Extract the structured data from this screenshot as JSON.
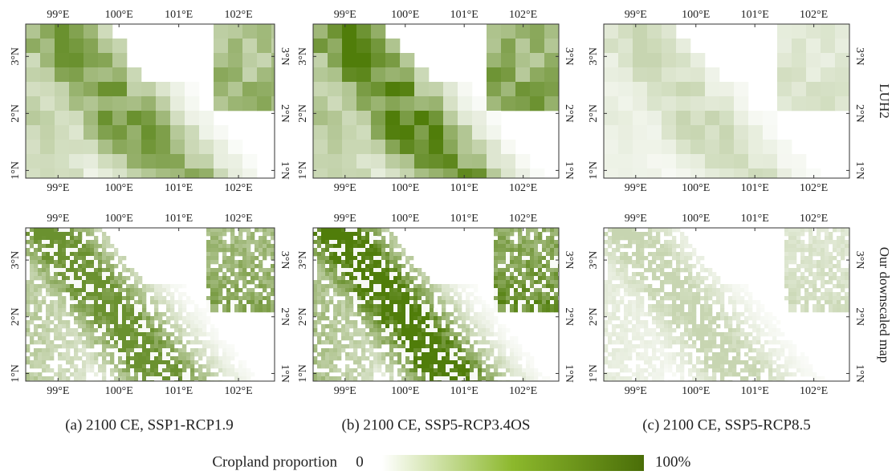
{
  "lon_ticks": [
    "99°E",
    "100°E",
    "101°E",
    "102°E"
  ],
  "lat_ticks": [
    "3°N",
    "2°N",
    "1°N"
  ],
  "row_labels": [
    "LUH2",
    "Our downscaled map"
  ],
  "captions": [
    "(a) 2100 CE, SSP1-RCP1.9",
    "(b) 2100 CE, SSP5-RCP3.4OS",
    "(c) 2100 CE, SSP5-RCP8.5"
  ],
  "colorbar": {
    "label": "Cropland proportion",
    "min_label": "0",
    "max_label": "100%"
  }
}
